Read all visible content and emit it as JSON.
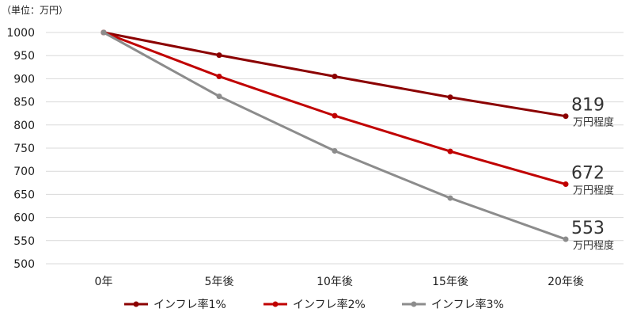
{
  "chart_data": {
    "type": "line",
    "unit_label": "（単位：万円）",
    "categories": [
      "0年",
      "5年後",
      "10年後",
      "15年後",
      "20年後"
    ],
    "ylim": [
      500,
      1000
    ],
    "yticks": [
      1000,
      950,
      900,
      850,
      800,
      750,
      700,
      650,
      600,
      550,
      500
    ],
    "grid": true,
    "legend_position": "bottom",
    "series": [
      {
        "name": "インフレ率1%",
        "color": "#8b0000",
        "values": [
          1000,
          951,
          905,
          860,
          819
        ]
      },
      {
        "name": "インフレ率2%",
        "color": "#c00000",
        "values": [
          1000,
          905,
          820,
          743,
          672
        ]
      },
      {
        "name": "インフレ率3%",
        "color": "#8c8c8c",
        "values": [
          1000,
          862,
          744,
          642,
          553
        ]
      }
    ],
    "end_labels": [
      {
        "value": "819",
        "suffix": "万円程度"
      },
      {
        "value": "672",
        "suffix": "万円程度"
      },
      {
        "value": "553",
        "suffix": "万円程度"
      }
    ]
  }
}
